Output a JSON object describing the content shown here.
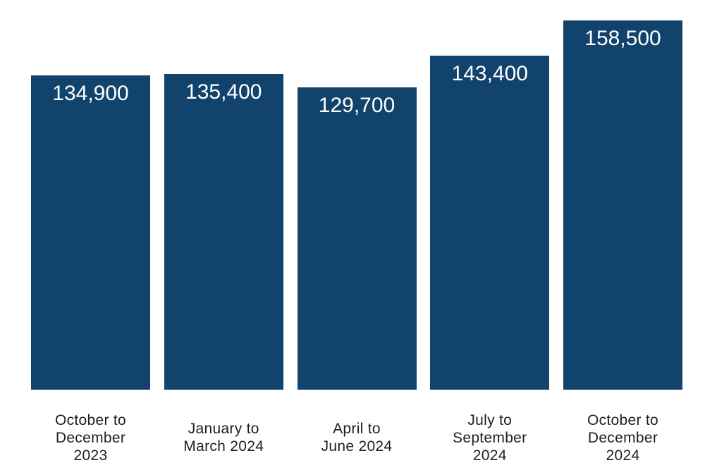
{
  "chart_data": {
    "type": "bar",
    "title": "",
    "xlabel": "",
    "ylabel": "",
    "categories": [
      "October to December 2023",
      "January to March 2024",
      "April to June 2024",
      "July to September 2024",
      "October to December 2024"
    ],
    "category_lines": [
      [
        "October to",
        "December",
        "2023"
      ],
      [
        "January to",
        "March 2024"
      ],
      [
        "April to",
        "June 2024"
      ],
      [
        "July to",
        "September",
        "2024"
      ],
      [
        "October to",
        "December",
        "2024"
      ]
    ],
    "values": [
      134900,
      135400,
      129700,
      143400,
      158500
    ],
    "value_labels": [
      "134,900",
      "135,400",
      "129,700",
      "143,400",
      "158,500"
    ],
    "ylim": [
      0,
      167000
    ],
    "grid": false,
    "legend": false,
    "colors": {
      "bar": "#12436D",
      "value_label": "#FFFFFF",
      "axis_label": "#1F1F1F",
      "background": "#FFFFFF"
    }
  }
}
